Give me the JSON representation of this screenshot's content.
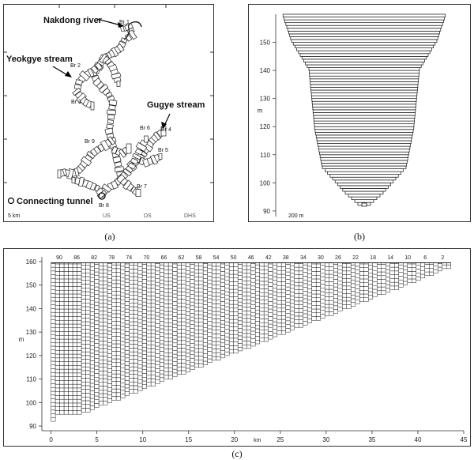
{
  "panel_a": {
    "caption": "(a)",
    "labels": {
      "nakdong": "Nakdong river",
      "yeokgye": "Yeokgye stream",
      "gugye": "Gugye stream",
      "tunnel": "Connecting tunnel"
    },
    "bridges": [
      "Br 1",
      "Br 2",
      "Br 3",
      "Br 4",
      "Br 5",
      "Br 6",
      "Br 7",
      "Br 8",
      "Br 9"
    ],
    "scale": "5 km",
    "bottom_labels": [
      "US",
      "DS",
      "DHS"
    ]
  },
  "panel_b": {
    "caption": "(b)",
    "y_label": "m",
    "y_ticks": [
      90,
      100,
      110,
      120,
      130,
      140,
      150
    ],
    "y_range": [
      88,
      160
    ],
    "scale": "200 m"
  },
  "panel_c": {
    "caption": "(c)",
    "y_label": "m",
    "x_label": "km",
    "y_ticks": [
      90,
      100,
      110,
      120,
      130,
      140,
      150,
      160
    ],
    "x_ticks": [
      0,
      5,
      10,
      15,
      20,
      25,
      30,
      35,
      40,
      45
    ],
    "top_labels": [
      "90",
      "86",
      "82",
      "78",
      "74",
      "70",
      "66",
      "62",
      "58",
      "54",
      "50",
      "46",
      "42",
      "38",
      "34",
      "30",
      "26",
      "22",
      "18",
      "14",
      "10",
      "6",
      "2"
    ],
    "y_range": [
      88,
      162
    ],
    "x_range": [
      -1,
      45
    ]
  }
}
